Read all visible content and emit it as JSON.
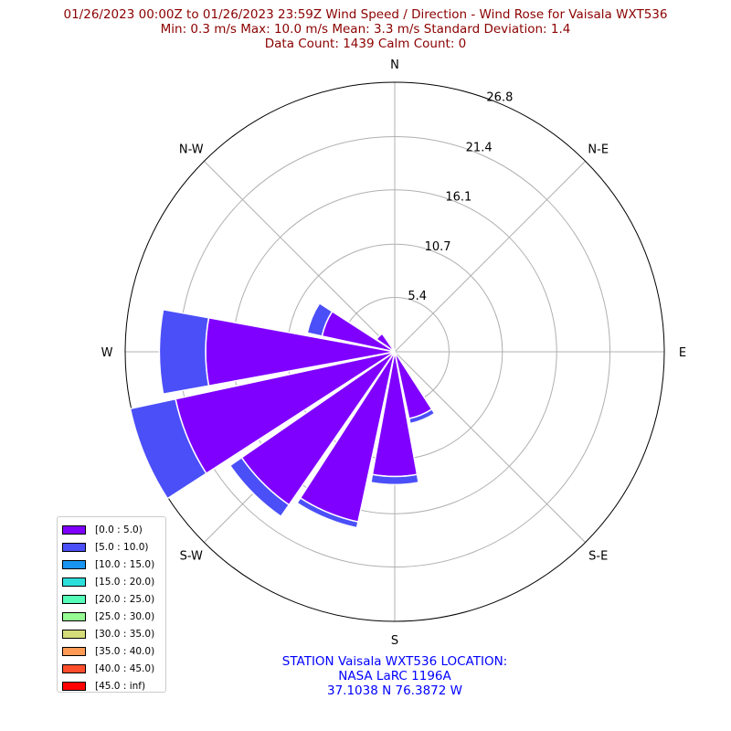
{
  "title": {
    "line1": "01/26/2023 00:00Z to 01/26/2023 23:59Z Wind Speed / Direction - Wind Rose for Vaisala WXT536",
    "line2": "Min: 0.3 m/s   Max: 10.0 m/s   Mean: 3.3 m/s  Standard Deviation: 1.4",
    "line3": "Data Count: 1439  Calm Count:  0"
  },
  "footer": {
    "line1": "STATION Vaisala WXT536 LOCATION:",
    "line2": "NASA LaRC 1196A",
    "line3": "37.1038 N 76.3872 W"
  },
  "chart_data": {
    "type": "windrose",
    "rmax": 26.8,
    "radial_ticks": [
      5.4,
      10.7,
      16.1,
      21.4,
      26.8
    ],
    "directions": [
      "N",
      "N-E",
      "E",
      "S-E",
      "S",
      "S-W",
      "W",
      "N-W"
    ],
    "grid": true,
    "legend_position": "lower-left",
    "bins": [
      {
        "label": "[0.0 : 5.0)",
        "color": "#7f00ff"
      },
      {
        "label": "[5.0 : 10.0)",
        "color": "#4b4ff8"
      },
      {
        "label": "[10.0 : 15.0)",
        "color": "#1995f1"
      },
      {
        "label": "[15.0 : 20.0)",
        "color": "#2cdfdb"
      },
      {
        "label": "[20.0 : 25.0)",
        "color": "#55fcb8"
      },
      {
        "label": "[25.0 : 30.0)",
        "color": "#95fb92"
      },
      {
        "label": "[30.0 : 35.0)",
        "color": "#d4db79"
      },
      {
        "label": "[35.0 : 40.0)",
        "color": "#ff9a55"
      },
      {
        "label": "[40.0 : 45.0)",
        "color": "#ff4d2b"
      },
      {
        "label": "[45.0 : inf)",
        "color": "#ff0000"
      }
    ],
    "sectors": [
      {
        "direction_deg": 157.5,
        "values": [
          6.8,
          0.5
        ]
      },
      {
        "direction_deg": 180,
        "values": [
          12.4,
          0.8
        ]
      },
      {
        "direction_deg": 202.5,
        "values": [
          17.3,
          0.6
        ]
      },
      {
        "direction_deg": 225,
        "values": [
          18.5,
          1.4
        ]
      },
      {
        "direction_deg": 247.5,
        "values": [
          22.3,
          4.6
        ]
      },
      {
        "direction_deg": 270,
        "values": [
          18.8,
          4.6
        ]
      },
      {
        "direction_deg": 292.5,
        "values": [
          7.4,
          1.5
        ]
      },
      {
        "direction_deg": 315,
        "values": [
          2.2,
          0.0
        ]
      },
      {
        "direction_deg": 337.5,
        "values": [
          0.3,
          0.0
        ]
      }
    ]
  }
}
